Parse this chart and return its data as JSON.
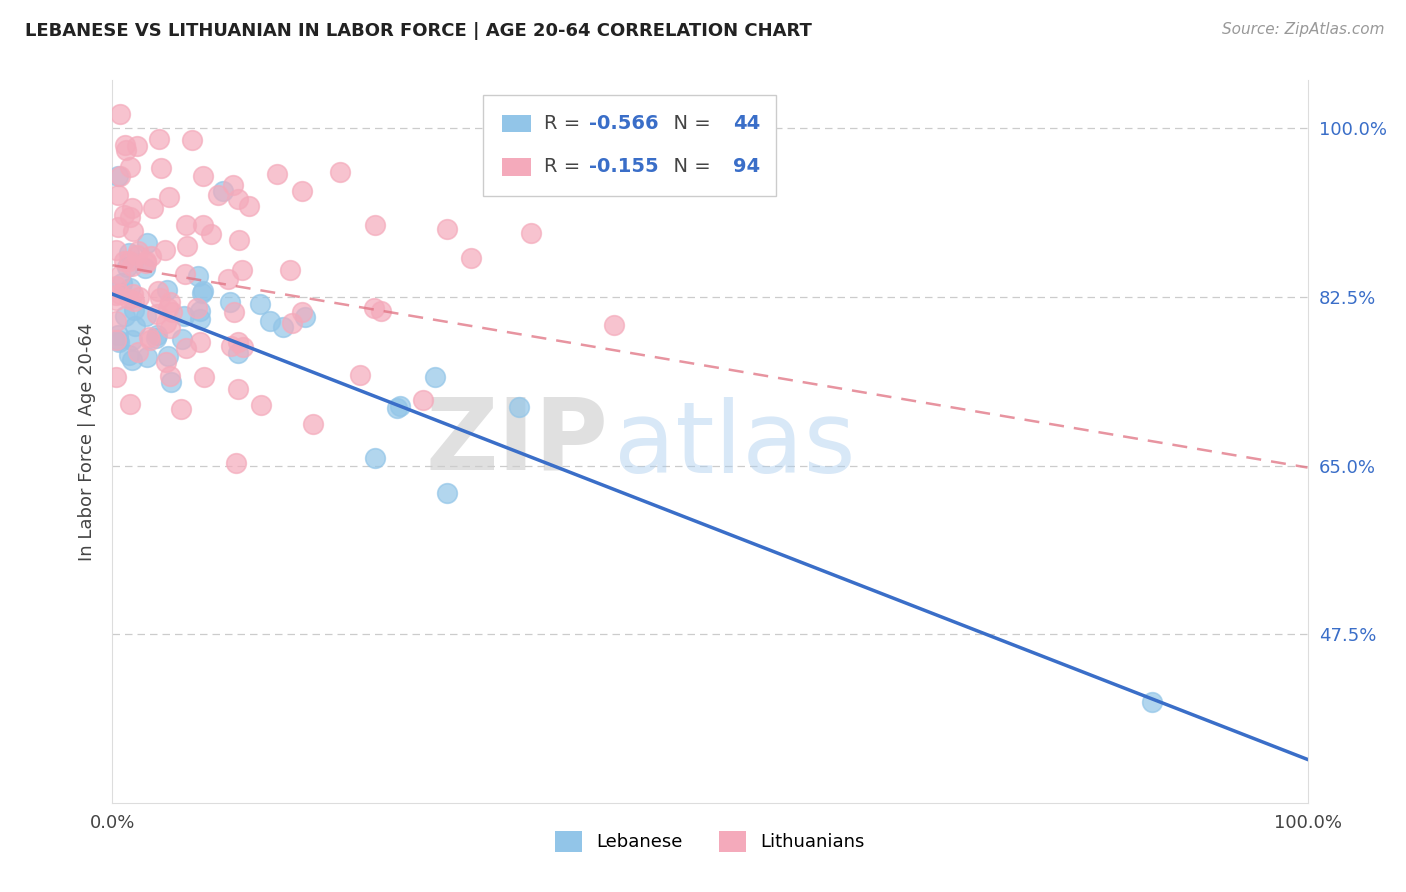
{
  "title": "LEBANESE VS LITHUANIAN IN LABOR FORCE | AGE 20-64 CORRELATION CHART",
  "source": "Source: ZipAtlas.com",
  "ylabel": "In Labor Force | Age 20-64",
  "legend_label_1": "Lebanese",
  "legend_label_2": "Lithuanians",
  "R1": -0.566,
  "N1": 44,
  "R2": -0.155,
  "N2": 94,
  "color_blue": "#92C5E8",
  "color_pink": "#F4AABB",
  "line_color_blue": "#3A6EC8",
  "line_color_pink": "#E07080",
  "watermark_zip": "ZIP",
  "watermark_atlas": "atlas",
  "xlim": [
    0.0,
    1.0
  ],
  "ylim": [
    0.3,
    1.05
  ],
  "yticks": [
    0.475,
    0.65,
    0.825,
    1.0
  ],
  "ytick_labels": [
    "47.5%",
    "65.0%",
    "82.5%",
    "100.0%"
  ],
  "xticks": [
    0.0,
    1.0
  ],
  "xtick_labels": [
    "0.0%",
    "100.0%"
  ],
  "blue_line_x0": 0.0,
  "blue_line_x1": 1.0,
  "blue_line_y0": 0.828,
  "blue_line_y1": 0.345,
  "pink_line_x0": 0.0,
  "pink_line_x1": 1.0,
  "pink_line_y0": 0.858,
  "pink_line_y1": 0.648,
  "seed_blue": 42,
  "seed_pink": 99,
  "N_blue": 44,
  "N_pink": 94
}
